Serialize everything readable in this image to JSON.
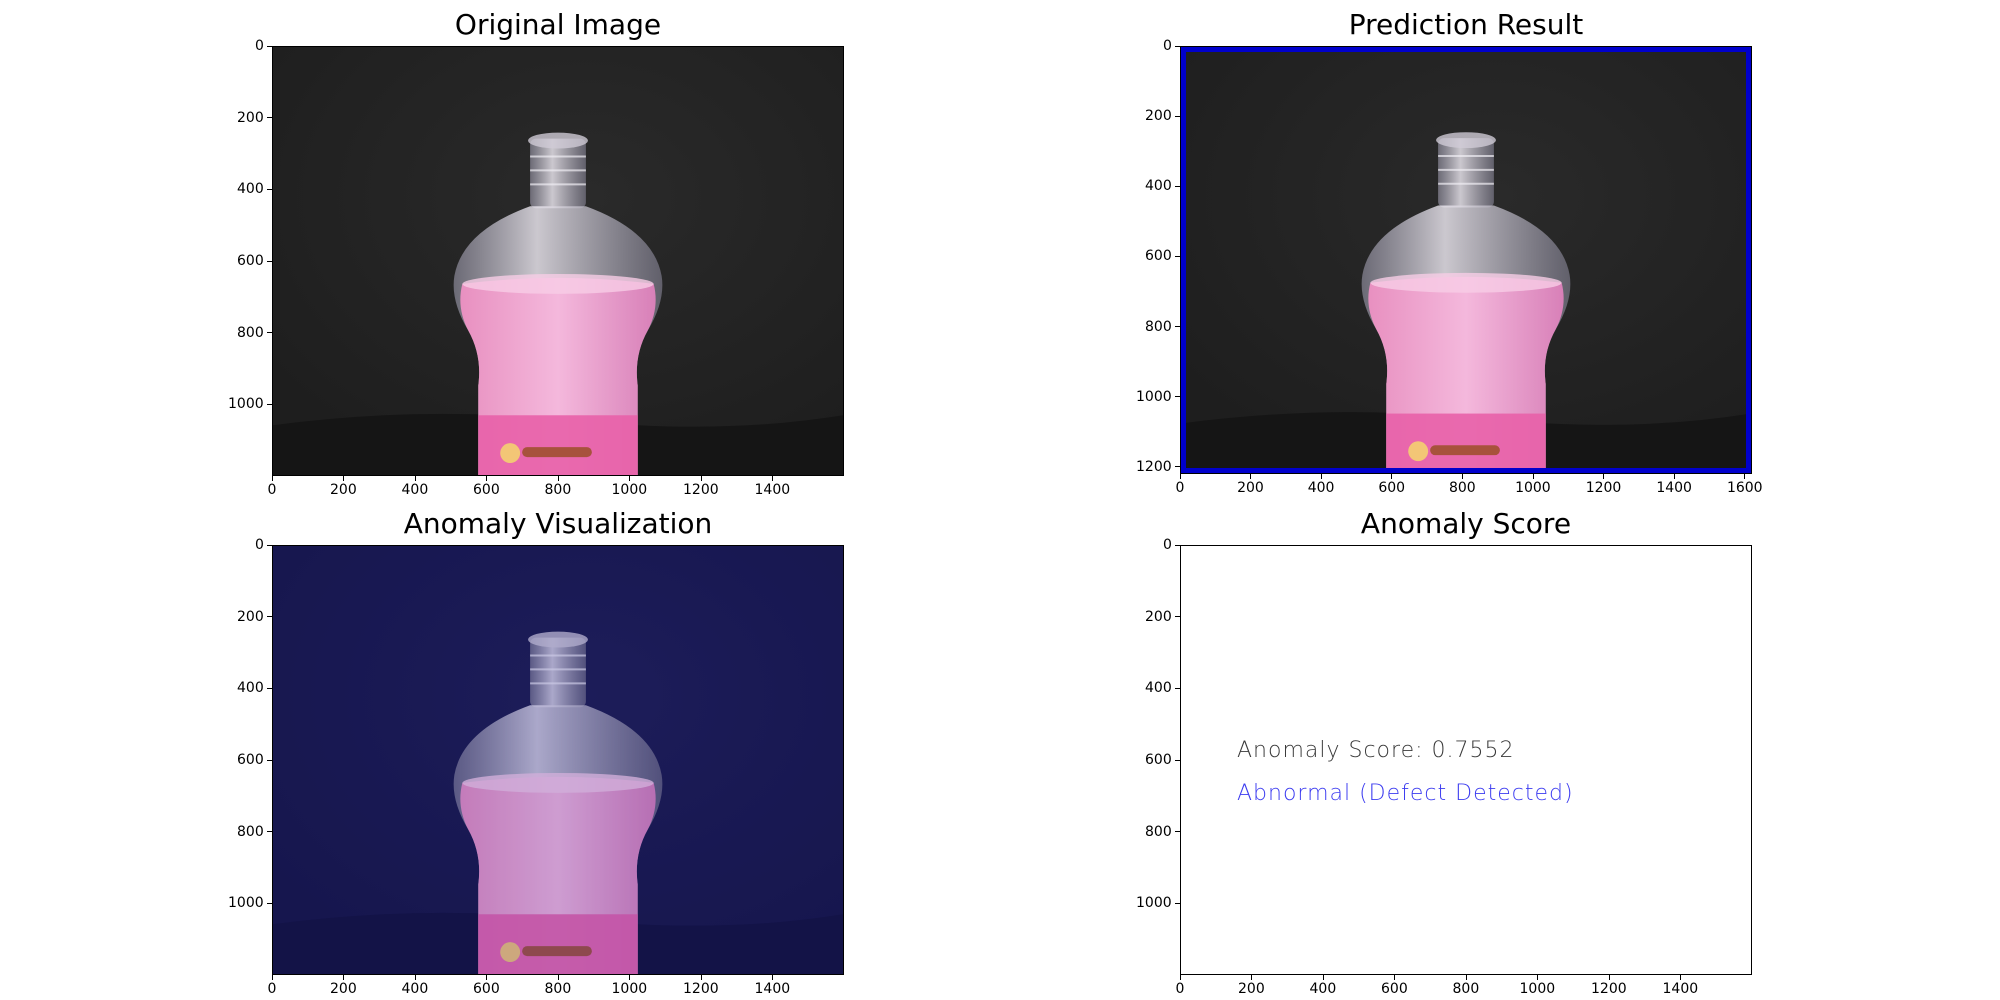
{
  "figure": {
    "panels": [
      {
        "id": "original",
        "title": "Original Image",
        "x_ticks": [
          "0",
          "200",
          "400",
          "600",
          "800",
          "1000",
          "1200",
          "1400"
        ],
        "y_ticks": [
          "0",
          "200",
          "400",
          "600",
          "800",
          "1000"
        ]
      },
      {
        "id": "prediction",
        "title": "Prediction Result",
        "x_ticks": [
          "0",
          "200",
          "400",
          "600",
          "800",
          "1000",
          "1200",
          "1400",
          "1600"
        ],
        "y_ticks": [
          "0",
          "200",
          "400",
          "600",
          "800",
          "1000",
          "1200"
        ],
        "box_color": "#0000cc"
      },
      {
        "id": "visualization",
        "title": "Anomaly Visualization",
        "x_ticks": [
          "0",
          "200",
          "400",
          "600",
          "800",
          "1000",
          "1200",
          "1400"
        ],
        "y_ticks": [
          "0",
          "200",
          "400",
          "600",
          "800",
          "1000"
        ]
      },
      {
        "id": "score",
        "title": "Anomaly Score",
        "x_ticks": [
          "0",
          "200",
          "400",
          "600",
          "800",
          "1000",
          "1200",
          "1400"
        ],
        "y_ticks": [
          "0",
          "200",
          "400",
          "600",
          "800",
          "1000"
        ],
        "score_line": "Anomaly Score: 0.7552",
        "status_line": "Abnormal (Defect Detected)",
        "score_color": "#3a3a3a",
        "status_color": "#3c3cf0"
      }
    ]
  },
  "chart_data": [
    {
      "type": "image",
      "title": "Original Image",
      "xlim": [
        0,
        1600
      ],
      "ylim": [
        1200,
        0
      ],
      "xticks": [
        0,
        200,
        400,
        600,
        800,
        1000,
        1200,
        1400
      ],
      "yticks": [
        0,
        200,
        400,
        600,
        800,
        1000
      ]
    },
    {
      "type": "image",
      "title": "Prediction Result",
      "xlim": [
        0,
        1620
      ],
      "ylim": [
        1220,
        0
      ],
      "xticks": [
        0,
        200,
        400,
        600,
        800,
        1000,
        1200,
        1400,
        1600
      ],
      "yticks": [
        0,
        200,
        400,
        600,
        800,
        1000,
        1200
      ]
    },
    {
      "type": "image",
      "title": "Anomaly Visualization",
      "xlim": [
        0,
        1600
      ],
      "ylim": [
        1200,
        0
      ],
      "xticks": [
        0,
        200,
        400,
        600,
        800,
        1000,
        1200,
        1400
      ],
      "yticks": [
        0,
        200,
        400,
        600,
        800,
        1000
      ]
    },
    {
      "type": "image",
      "title": "Anomaly Score",
      "xlim": [
        0,
        1600
      ],
      "ylim": [
        1200,
        0
      ],
      "xticks": [
        0,
        200,
        400,
        600,
        800,
        1000,
        1200,
        1400
      ],
      "yticks": [
        0,
        200,
        400,
        600,
        800,
        1000
      ],
      "annotations": [
        "Anomaly Score: 0.7552",
        "Abnormal (Defect Detected)"
      ]
    }
  ],
  "colors": {
    "photo_background": "#1e1e1e",
    "visualization_tint": "#14143c",
    "liquid_pink": "#f0a8d0",
    "bottle_glass": "#d8d4dc"
  },
  "icons": [
    "bottle-photo"
  ]
}
